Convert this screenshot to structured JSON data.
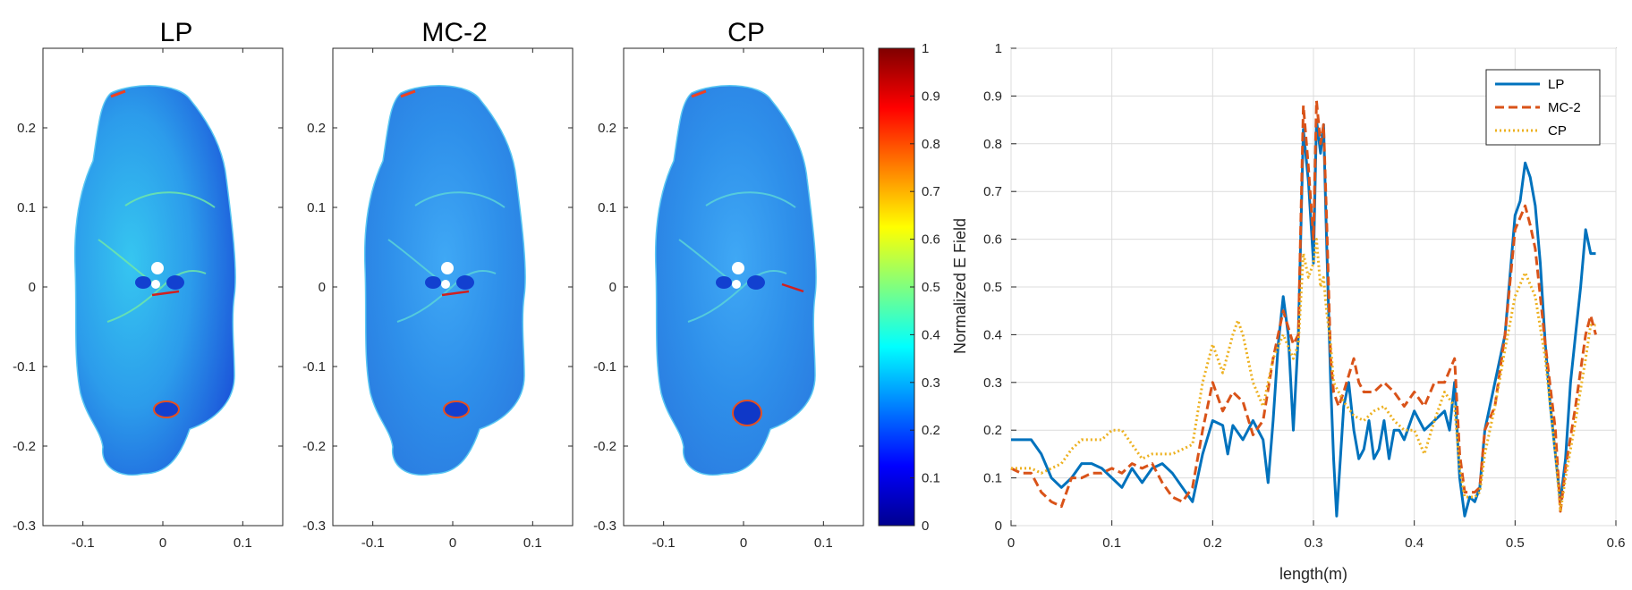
{
  "chart_data": [
    {
      "type": "heatmap",
      "title": "LP",
      "xlim": [
        -0.15,
        0.15
      ],
      "ylim": [
        -0.3,
        0.3
      ],
      "xticks": [
        -0.1,
        0,
        0.1
      ],
      "yticks": [
        0.2,
        0.1,
        0,
        -0.1,
        -0.2,
        -0.3
      ],
      "xticklabels": [
        "-0.1",
        "0",
        "0.1"
      ],
      "yticklabels": [
        "0.2",
        "0.1",
        "0",
        "-0.1",
        "-0.2",
        "-0.3"
      ]
    },
    {
      "type": "heatmap",
      "title": "MC-2",
      "xlim": [
        -0.15,
        0.15
      ],
      "ylim": [
        -0.3,
        0.3
      ],
      "xticks": [
        -0.1,
        0,
        0.1
      ],
      "yticks": [
        0.2,
        0.1,
        0,
        -0.1,
        -0.2,
        -0.3
      ],
      "xticklabels": [
        "-0.1",
        "0",
        "0.1"
      ],
      "yticklabels": [
        "0.2",
        "0.1",
        "0",
        "-0.1",
        "-0.2",
        "-0.3"
      ]
    },
    {
      "type": "heatmap",
      "title": "CP",
      "xlim": [
        -0.15,
        0.15
      ],
      "ylim": [
        -0.3,
        0.3
      ],
      "xticks": [
        -0.1,
        0,
        0.1
      ],
      "yticks": [
        0.2,
        0.1,
        0,
        -0.1,
        -0.2,
        -0.3
      ],
      "xticklabels": [
        "-0.1",
        "0",
        "0.1"
      ],
      "yticklabels": [
        "0.2",
        "0.1",
        "0",
        "-0.1",
        "-0.2",
        "-0.3"
      ]
    },
    {
      "type": "colorbar",
      "label": "Normalized E Field",
      "range": [
        0,
        1
      ],
      "ticks": [
        0,
        0.1,
        0.2,
        0.3,
        0.4,
        0.5,
        0.6,
        0.7,
        0.8,
        0.9,
        1
      ],
      "ticklabels": [
        "0",
        "0.1",
        "0.2",
        "0.3",
        "0.4",
        "0.5",
        "0.6",
        "0.7",
        "0.8",
        "0.9",
        "1"
      ],
      "colormap": "jet"
    },
    {
      "type": "line",
      "xlabel": "length(m)",
      "ylabel": "",
      "xlim": [
        0,
        0.6
      ],
      "ylim": [
        0,
        1
      ],
      "xticks": [
        0,
        0.1,
        0.2,
        0.3,
        0.4,
        0.5,
        0.6
      ],
      "yticks": [
        0,
        0.1,
        0.2,
        0.3,
        0.4,
        0.5,
        0.6,
        0.7,
        0.8,
        0.9,
        1
      ],
      "xticklabels": [
        "0",
        "0.1",
        "0.2",
        "0.3",
        "0.4",
        "0.5",
        "0.6"
      ],
      "yticklabels": [
        "0",
        "0.1",
        "0.2",
        "0.3",
        "0.4",
        "0.5",
        "0.6",
        "0.7",
        "0.8",
        "0.9",
        "1"
      ],
      "grid": true,
      "legend": "top-right",
      "series": [
        {
          "name": "LP",
          "color": "#0072BD",
          "style": "solid",
          "points": [
            [
              0,
              0.18
            ],
            [
              0.01,
              0.18
            ],
            [
              0.02,
              0.18
            ],
            [
              0.03,
              0.15
            ],
            [
              0.04,
              0.1
            ],
            [
              0.05,
              0.08
            ],
            [
              0.06,
              0.1
            ],
            [
              0.07,
              0.13
            ],
            [
              0.08,
              0.13
            ],
            [
              0.09,
              0.12
            ],
            [
              0.1,
              0.1
            ],
            [
              0.11,
              0.08
            ],
            [
              0.12,
              0.12
            ],
            [
              0.13,
              0.09
            ],
            [
              0.14,
              0.12
            ],
            [
              0.15,
              0.13
            ],
            [
              0.16,
              0.11
            ],
            [
              0.17,
              0.08
            ],
            [
              0.18,
              0.05
            ],
            [
              0.19,
              0.15
            ],
            [
              0.2,
              0.22
            ],
            [
              0.21,
              0.21
            ],
            [
              0.215,
              0.15
            ],
            [
              0.22,
              0.21
            ],
            [
              0.23,
              0.18
            ],
            [
              0.24,
              0.22
            ],
            [
              0.25,
              0.18
            ],
            [
              0.255,
              0.09
            ],
            [
              0.26,
              0.22
            ],
            [
              0.265,
              0.38
            ],
            [
              0.27,
              0.48
            ],
            [
              0.275,
              0.4
            ],
            [
              0.28,
              0.2
            ],
            [
              0.285,
              0.4
            ],
            [
              0.29,
              0.83
            ],
            [
              0.295,
              0.72
            ],
            [
              0.3,
              0.55
            ],
            [
              0.303,
              0.85
            ],
            [
              0.307,
              0.78
            ],
            [
              0.31,
              0.84
            ],
            [
              0.313,
              0.6
            ],
            [
              0.317,
              0.3
            ],
            [
              0.32,
              0.14
            ],
            [
              0.323,
              0.02
            ],
            [
              0.327,
              0.15
            ],
            [
              0.33,
              0.25
            ],
            [
              0.335,
              0.3
            ],
            [
              0.34,
              0.2
            ],
            [
              0.345,
              0.14
            ],
            [
              0.35,
              0.16
            ],
            [
              0.355,
              0.22
            ],
            [
              0.36,
              0.14
            ],
            [
              0.365,
              0.16
            ],
            [
              0.37,
              0.22
            ],
            [
              0.375,
              0.14
            ],
            [
              0.38,
              0.2
            ],
            [
              0.385,
              0.2
            ],
            [
              0.39,
              0.18
            ],
            [
              0.4,
              0.24
            ],
            [
              0.41,
              0.2
            ],
            [
              0.42,
              0.22
            ],
            [
              0.43,
              0.24
            ],
            [
              0.435,
              0.2
            ],
            [
              0.44,
              0.3
            ],
            [
              0.445,
              0.1
            ],
            [
              0.45,
              0.02
            ],
            [
              0.455,
              0.06
            ],
            [
              0.46,
              0.05
            ],
            [
              0.465,
              0.08
            ],
            [
              0.47,
              0.2
            ],
            [
              0.48,
              0.3
            ],
            [
              0.49,
              0.4
            ],
            [
              0.5,
              0.65
            ],
            [
              0.505,
              0.68
            ],
            [
              0.51,
              0.76
            ],
            [
              0.515,
              0.73
            ],
            [
              0.52,
              0.67
            ],
            [
              0.525,
              0.55
            ],
            [
              0.53,
              0.38
            ],
            [
              0.535,
              0.25
            ],
            [
              0.54,
              0.15
            ],
            [
              0.545,
              0.05
            ],
            [
              0.55,
              0.14
            ],
            [
              0.555,
              0.3
            ],
            [
              0.56,
              0.4
            ],
            [
              0.565,
              0.5
            ],
            [
              0.57,
              0.62
            ],
            [
              0.575,
              0.57
            ],
            [
              0.58,
              0.57
            ]
          ]
        },
        {
          "name": "MC-2",
          "color": "#D95319",
          "style": "dashed",
          "points": [
            [
              0,
              0.12
            ],
            [
              0.01,
              0.11
            ],
            [
              0.02,
              0.11
            ],
            [
              0.03,
              0.07
            ],
            [
              0.04,
              0.05
            ],
            [
              0.05,
              0.04
            ],
            [
              0.06,
              0.1
            ],
            [
              0.07,
              0.1
            ],
            [
              0.08,
              0.11
            ],
            [
              0.09,
              0.11
            ],
            [
              0.1,
              0.12
            ],
            [
              0.11,
              0.11
            ],
            [
              0.12,
              0.13
            ],
            [
              0.13,
              0.12
            ],
            [
              0.14,
              0.13
            ],
            [
              0.15,
              0.09
            ],
            [
              0.16,
              0.06
            ],
            [
              0.17,
              0.05
            ],
            [
              0.18,
              0.08
            ],
            [
              0.19,
              0.2
            ],
            [
              0.2,
              0.3
            ],
            [
              0.21,
              0.24
            ],
            [
              0.22,
              0.28
            ],
            [
              0.23,
              0.26
            ],
            [
              0.24,
              0.19
            ],
            [
              0.25,
              0.22
            ],
            [
              0.26,
              0.35
            ],
            [
              0.27,
              0.45
            ],
            [
              0.28,
              0.38
            ],
            [
              0.285,
              0.4
            ],
            [
              0.29,
              0.88
            ],
            [
              0.295,
              0.75
            ],
            [
              0.3,
              0.6
            ],
            [
              0.303,
              0.89
            ],
            [
              0.307,
              0.8
            ],
            [
              0.31,
              0.84
            ],
            [
              0.313,
              0.65
            ],
            [
              0.317,
              0.35
            ],
            [
              0.32,
              0.28
            ],
            [
              0.325,
              0.25
            ],
            [
              0.33,
              0.28
            ],
            [
              0.34,
              0.35
            ],
            [
              0.345,
              0.3
            ],
            [
              0.35,
              0.28
            ],
            [
              0.36,
              0.28
            ],
            [
              0.37,
              0.3
            ],
            [
              0.38,
              0.28
            ],
            [
              0.39,
              0.25
            ],
            [
              0.4,
              0.28
            ],
            [
              0.41,
              0.25
            ],
            [
              0.42,
              0.3
            ],
            [
              0.43,
              0.3
            ],
            [
              0.44,
              0.35
            ],
            [
              0.445,
              0.15
            ],
            [
              0.45,
              0.07
            ],
            [
              0.46,
              0.07
            ],
            [
              0.465,
              0.08
            ],
            [
              0.47,
              0.2
            ],
            [
              0.48,
              0.25
            ],
            [
              0.49,
              0.4
            ],
            [
              0.5,
              0.62
            ],
            [
              0.51,
              0.67
            ],
            [
              0.515,
              0.63
            ],
            [
              0.52,
              0.58
            ],
            [
              0.53,
              0.38
            ],
            [
              0.54,
              0.2
            ],
            [
              0.545,
              0.03
            ],
            [
              0.55,
              0.12
            ],
            [
              0.56,
              0.25
            ],
            [
              0.57,
              0.4
            ],
            [
              0.575,
              0.44
            ],
            [
              0.58,
              0.4
            ]
          ]
        },
        {
          "name": "CP",
          "color": "#EDB120",
          "style": "dotted",
          "points": [
            [
              0,
              0.12
            ],
            [
              0.01,
              0.12
            ],
            [
              0.02,
              0.12
            ],
            [
              0.03,
              0.11
            ],
            [
              0.04,
              0.12
            ],
            [
              0.05,
              0.13
            ],
            [
              0.06,
              0.16
            ],
            [
              0.07,
              0.18
            ],
            [
              0.08,
              0.18
            ],
            [
              0.09,
              0.18
            ],
            [
              0.1,
              0.2
            ],
            [
              0.11,
              0.2
            ],
            [
              0.12,
              0.17
            ],
            [
              0.13,
              0.14
            ],
            [
              0.14,
              0.15
            ],
            [
              0.15,
              0.15
            ],
            [
              0.16,
              0.15
            ],
            [
              0.17,
              0.16
            ],
            [
              0.18,
              0.17
            ],
            [
              0.19,
              0.3
            ],
            [
              0.2,
              0.38
            ],
            [
              0.21,
              0.32
            ],
            [
              0.22,
              0.4
            ],
            [
              0.225,
              0.43
            ],
            [
              0.23,
              0.4
            ],
            [
              0.24,
              0.3
            ],
            [
              0.25,
              0.25
            ],
            [
              0.26,
              0.35
            ],
            [
              0.27,
              0.4
            ],
            [
              0.28,
              0.35
            ],
            [
              0.285,
              0.38
            ],
            [
              0.29,
              0.57
            ],
            [
              0.295,
              0.52
            ],
            [
              0.3,
              0.55
            ],
            [
              0.303,
              0.6
            ],
            [
              0.307,
              0.5
            ],
            [
              0.31,
              0.52
            ],
            [
              0.313,
              0.45
            ],
            [
              0.317,
              0.38
            ],
            [
              0.32,
              0.3
            ],
            [
              0.33,
              0.26
            ],
            [
              0.34,
              0.23
            ],
            [
              0.35,
              0.22
            ],
            [
              0.36,
              0.24
            ],
            [
              0.37,
              0.25
            ],
            [
              0.38,
              0.22
            ],
            [
              0.39,
              0.2
            ],
            [
              0.4,
              0.2
            ],
            [
              0.41,
              0.15
            ],
            [
              0.42,
              0.22
            ],
            [
              0.43,
              0.28
            ],
            [
              0.44,
              0.25
            ],
            [
              0.445,
              0.12
            ],
            [
              0.45,
              0.06
            ],
            [
              0.46,
              0.06
            ],
            [
              0.465,
              0.07
            ],
            [
              0.47,
              0.15
            ],
            [
              0.48,
              0.25
            ],
            [
              0.49,
              0.37
            ],
            [
              0.5,
              0.48
            ],
            [
              0.51,
              0.53
            ],
            [
              0.52,
              0.48
            ],
            [
              0.53,
              0.35
            ],
            [
              0.54,
              0.15
            ],
            [
              0.545,
              0.03
            ],
            [
              0.55,
              0.1
            ],
            [
              0.56,
              0.22
            ],
            [
              0.57,
              0.35
            ],
            [
              0.575,
              0.42
            ],
            [
              0.58,
              0.42
            ]
          ]
        }
      ]
    }
  ]
}
